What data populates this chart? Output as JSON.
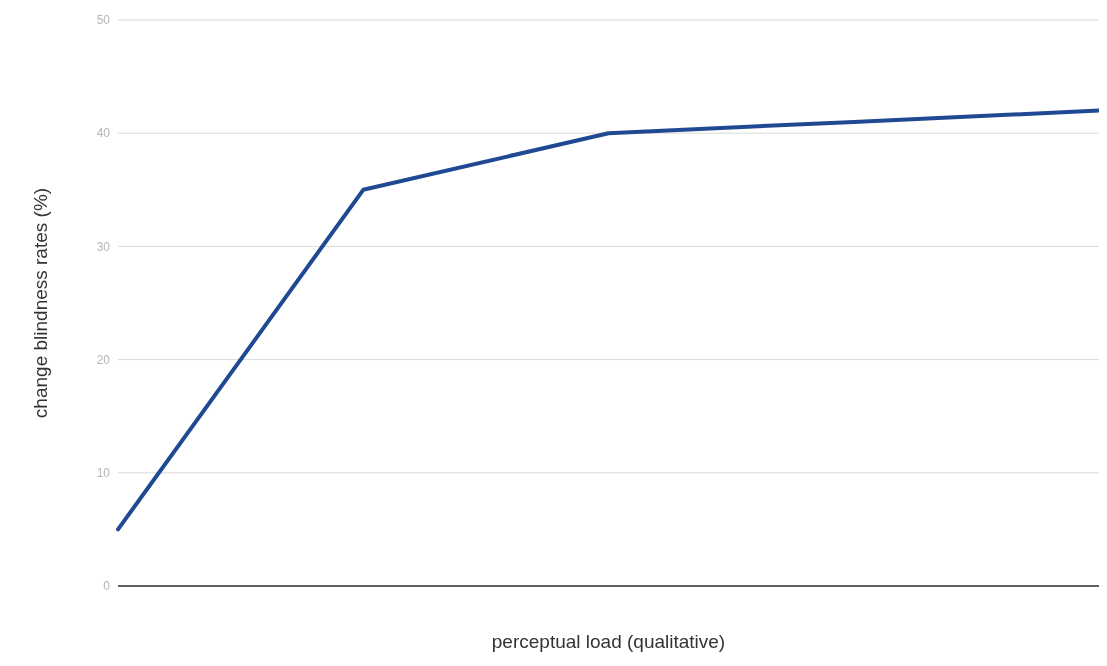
{
  "chart_data": {
    "type": "line",
    "xlabel": "perceptual load (qualitative)",
    "ylabel": "change blindness rates (%)",
    "categories": [
      null,
      null,
      null,
      null,
      null
    ],
    "series": [
      {
        "color": "#1f4a93",
        "values": [
          5,
          35,
          40,
          41,
          42
        ]
      }
    ],
    "ylim": [
      0,
      50
    ],
    "yticks": [
      0,
      10,
      20,
      30,
      40,
      50
    ],
    "grid": "y",
    "legend": false,
    "marker": "none",
    "line_style": "solid",
    "tick_labels": "y"
  }
}
